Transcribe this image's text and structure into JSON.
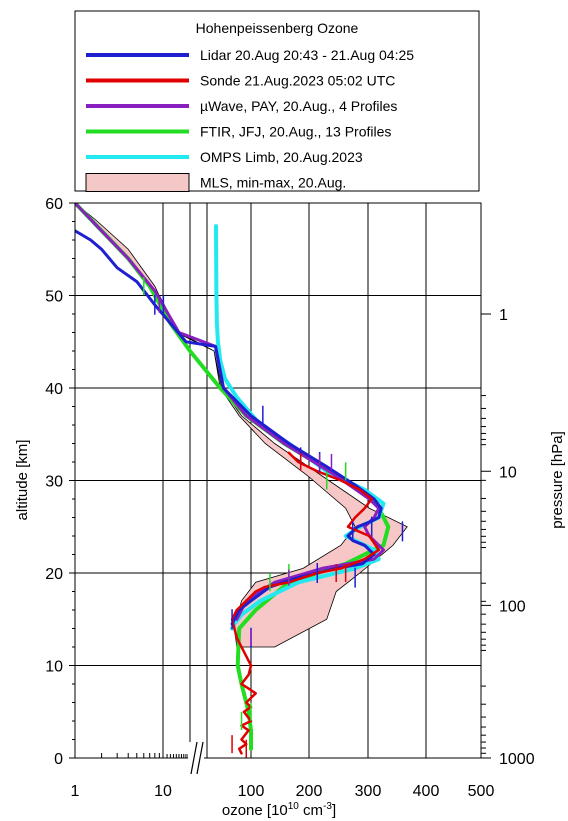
{
  "chart_data": {
    "type": "line",
    "legend": {
      "title": "Hohenpeissenberg Ozone",
      "placement": "top",
      "entries": [
        {
          "label": "Lidar 20.Aug 20:43 - 21.Aug 04:25",
          "color": "#1f1fd0"
        },
        {
          "label": "Sonde 21.Aug.2023 05:02 UTC",
          "color": "#e00000"
        },
        {
          "label": "µWave, PAY, 20.Aug., 4 Profiles",
          "color": "#8a1fc0"
        },
        {
          "label": "FTIR, JFJ, 20.Aug., 13 Profiles",
          "color": "#22dd22"
        },
        {
          "label": "OMPS Limb, 20.Aug.2023",
          "color": "#22e8f0"
        },
        {
          "label": "MLS, min-max, 20.Aug.",
          "color": "#f5c8c8"
        }
      ]
    },
    "xlabel": "ozone [10¹⁰ cm⁻³]",
    "ylabel": "altitude [km]",
    "y2label": "pressure [hPa]",
    "x_ticks": [
      "1",
      "10",
      "100",
      "200",
      "300",
      "400",
      "500"
    ],
    "y_ticks": [
      "0",
      "10",
      "20",
      "30",
      "40",
      "50",
      "60"
    ],
    "y2_ticks": [
      "1",
      "10",
      "100",
      "1000"
    ],
    "ylim": [
      0,
      60
    ],
    "grid": true,
    "series": [
      {
        "key": "mls_max",
        "x": [
          1,
          2,
          5,
          9,
          15,
          22,
          38,
          80,
          150,
          250,
          350,
          430,
          400,
          330,
          280,
          260,
          150
        ],
        "y": [
          60,
          57,
          53,
          50,
          46,
          44,
          40,
          37,
          34,
          30.5,
          27,
          25,
          23,
          20,
          18,
          15,
          12
        ]
      },
      {
        "key": "mls_min",
        "x": [
          1,
          1.8,
          4,
          8,
          14,
          22,
          35,
          75,
          130,
          220,
          300,
          320,
          290,
          210,
          110,
          80,
          65,
          70
        ],
        "y": [
          60,
          58,
          55,
          51,
          46,
          44,
          40,
          37,
          34,
          30.5,
          27,
          25,
          23,
          20.5,
          19,
          17,
          14,
          12
        ]
      },
      {
        "key": "ftir",
        "x": [
          1,
          2,
          4,
          7,
          12,
          20,
          35,
          90,
          170,
          300,
          360,
          390,
          380,
          300,
          180,
          110,
          75,
          72,
          80,
          95,
          100,
          100
        ],
        "y": [
          60,
          57,
          54,
          51,
          47,
          44,
          40,
          37,
          34,
          30,
          28,
          25,
          23,
          21,
          19,
          16,
          14,
          10,
          8,
          5,
          3,
          1
        ]
      },
      {
        "key": "omps",
        "x": [
          26,
          26.5,
          27,
          28,
          30,
          35,
          45,
          70,
          120,
          180,
          260,
          340,
          380,
          370,
          330,
          300,
          320,
          360,
          370,
          320,
          200,
          120,
          80,
          65,
          60
        ],
        "y": [
          57.5,
          54,
          50,
          47,
          45,
          43,
          41,
          39,
          36,
          34,
          31,
          29,
          27.5,
          26,
          25,
          24,
          23.5,
          22.5,
          21.5,
          20.5,
          19,
          17,
          15.5,
          14.5,
          14
        ]
      },
      {
        "key": "uwave",
        "x": [
          1,
          2,
          4,
          8,
          15,
          25,
          42,
          90,
          170,
          280,
          350,
          370,
          360,
          340,
          350,
          380,
          360,
          250,
          150,
          90,
          70
        ],
        "y": [
          60,
          57,
          54,
          50.5,
          46,
          44.5,
          40,
          37,
          34,
          30.5,
          28,
          27,
          26,
          25,
          24,
          22.5,
          21.5,
          20.5,
          19,
          17,
          15
        ]
      },
      {
        "key": "lidar",
        "x": [
          1,
          1.5,
          2,
          3,
          5,
          8,
          12,
          18,
          25,
          42,
          100,
          180,
          260,
          320,
          360,
          375,
          370,
          350,
          325,
          305,
          315,
          340,
          360,
          335,
          280,
          200,
          140,
          100,
          75,
          65,
          60
        ],
        "y": [
          57,
          56,
          55,
          53,
          51.5,
          49,
          47,
          45,
          44.5,
          40,
          37,
          34,
          31.5,
          29.5,
          28,
          27,
          26,
          25.5,
          25,
          24,
          23.5,
          23,
          22,
          21,
          20.5,
          19.5,
          18.5,
          17,
          16,
          15,
          14.5
        ]
      },
      {
        "key": "sonde",
        "x": [
          180,
          200,
          240,
          290,
          330,
          355,
          340,
          320,
          305,
          350,
          370,
          340,
          290,
          240,
          180,
          130,
          110,
          90,
          70,
          60,
          70,
          90,
          100,
          95,
          80,
          95,
          110,
          90,
          100,
          85,
          100,
          80,
          95,
          80,
          90,
          75,
          80
        ],
        "y": [
          33,
          32,
          31,
          30,
          29,
          28,
          27,
          26,
          25,
          24,
          22.5,
          21.5,
          20.5,
          20,
          19,
          18.5,
          18,
          17,
          16,
          15,
          13,
          11,
          10,
          9,
          8,
          7.5,
          7,
          6,
          5.5,
          5,
          4,
          3.5,
          3,
          2,
          1.5,
          1,
          0.5
        ]
      }
    ]
  }
}
